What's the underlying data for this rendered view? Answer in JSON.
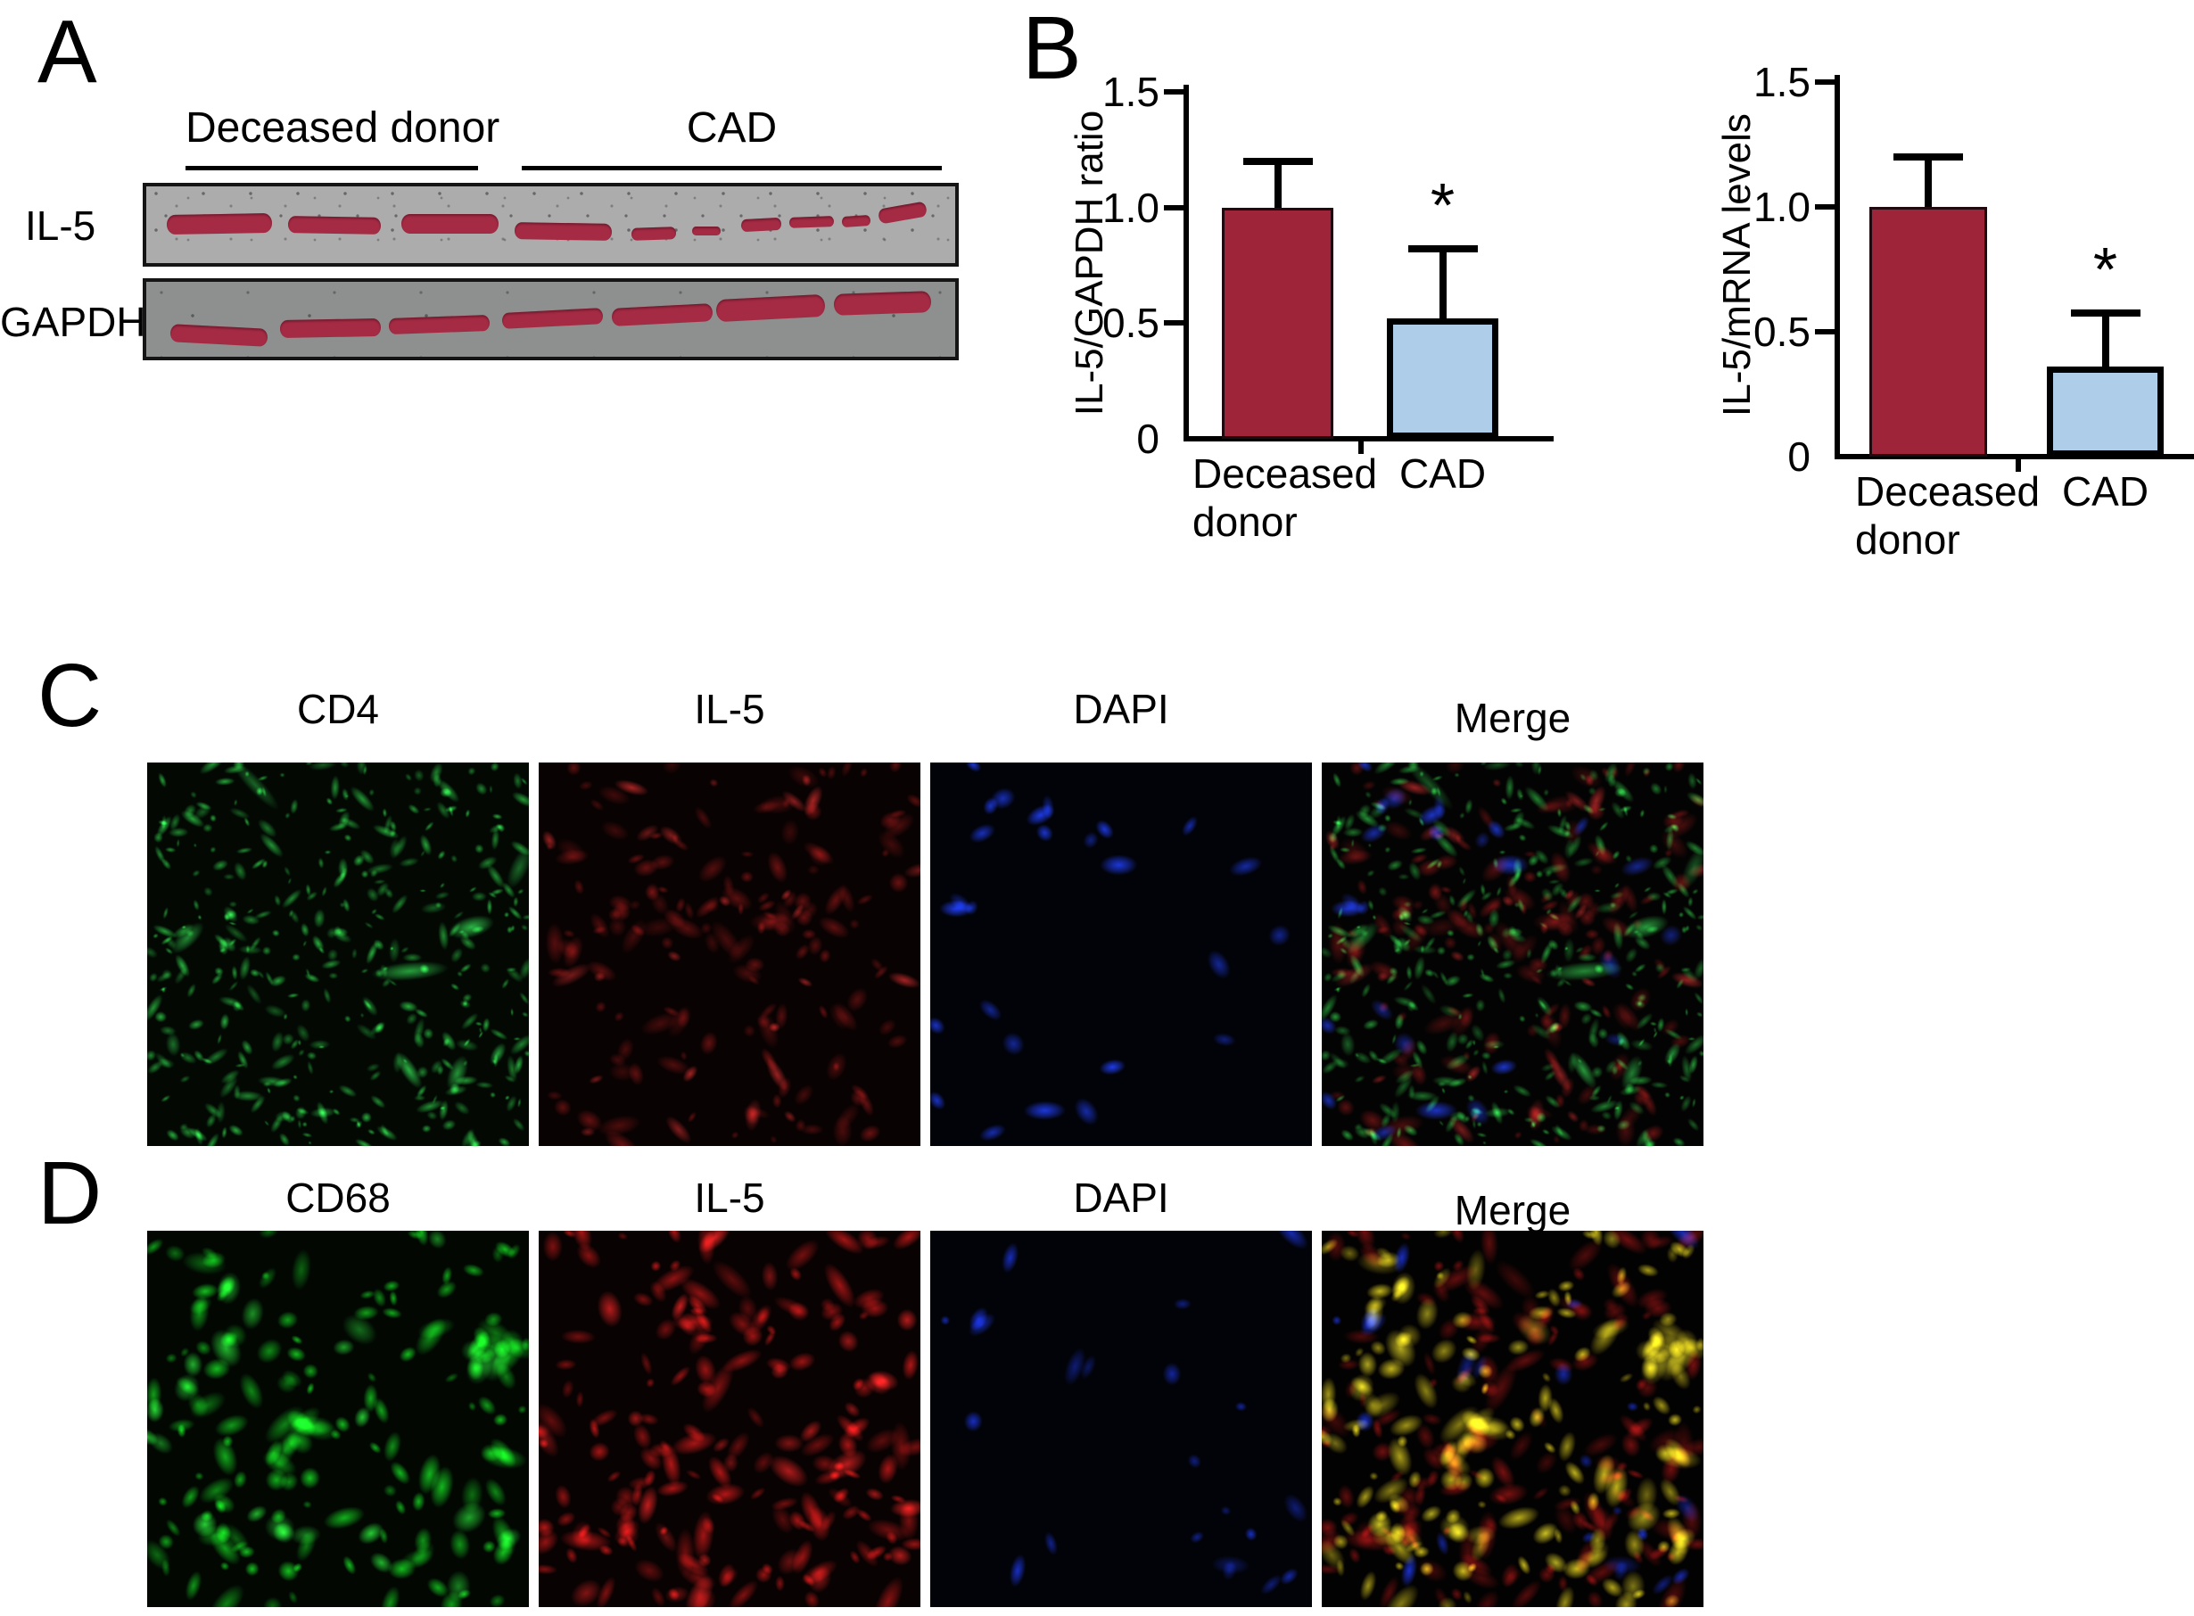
{
  "background": "#ffffff",
  "panels": {
    "A": {
      "letter": "A",
      "group_labels": [
        "Deceased donor",
        "CAD"
      ],
      "row_labels": [
        "IL-5",
        "GAPDH"
      ],
      "band_color": "#a52b44",
      "strips": [
        {
          "name": "IL-5 blot",
          "bg": "#acacac",
          "bands": [
            [
              2.5,
              36,
              13,
              26,
              -1
            ],
            [
              17.5,
              40,
              11.5,
              22,
              1
            ],
            [
              31.5,
              36,
              12,
              26,
              0
            ],
            [
              45.5,
              48,
              12,
              22,
              1
            ],
            [
              60,
              54,
              5.5,
              16,
              -2
            ],
            [
              67.5,
              52,
              3.5,
              12,
              0
            ],
            [
              73.5,
              42,
              5,
              16,
              -3
            ],
            [
              79.5,
              40,
              5.5,
              14,
              -2
            ],
            [
              86,
              38,
              3.5,
              14,
              -4
            ],
            [
              90.5,
              24,
              6,
              20,
              -10
            ]
          ]
        },
        {
          "name": "GAPDH blot",
          "bg": "#8e8f8f",
          "bands": [
            [
              3,
              60,
              12,
              24,
              3
            ],
            [
              16.5,
              50,
              12.5,
              24,
              -1
            ],
            [
              30,
              46,
              12.5,
              22,
              -2
            ],
            [
              44,
              38,
              12.5,
              22,
              -3
            ],
            [
              57.5,
              32,
              12.5,
              24,
              -3
            ],
            [
              70.5,
              20,
              13.5,
              30,
              -3
            ],
            [
              85,
              14,
              12,
              28,
              -2
            ]
          ]
        }
      ]
    },
    "B": {
      "letter": "B"
    },
    "C": {
      "letter": "C",
      "images": [
        {
          "label": "CD4",
          "bg": "#030803",
          "channels": [
            {
              "color": "#2fd44a",
              "seed": 101,
              "count": 400,
              "rmin": 1.5,
              "rmax": 6.5,
              "elong": 3,
              "alpha": 0.8
            },
            {
              "color": "#35e055",
              "seed": 102,
              "count": 10,
              "rmin": 5,
              "rmax": 12,
              "elong": 4.5,
              "alpha": 0.8
            }
          ]
        },
        {
          "label": "IL-5",
          "bg": "#090202",
          "channels": [
            {
              "color": "#c61f1f",
              "seed": 201,
              "count": 150,
              "rmin": 3.5,
              "rmax": 11,
              "elong": 2.4,
              "alpha": 0.5
            },
            {
              "color": "#e03030",
              "seed": 202,
              "count": 25,
              "rmin": 4,
              "rmax": 9,
              "elong": 2.8,
              "alpha": 0.75
            }
          ]
        },
        {
          "label": "DAPI",
          "bg": "#020309",
          "channels": [
            {
              "color": "#2040ff",
              "seed": 301,
              "count": 26,
              "rmin": 6,
              "rmax": 13,
              "elong": 2.3,
              "alpha": 0.9
            }
          ]
        },
        {
          "label": "Merge",
          "bg": "#040303",
          "channels": [
            {
              "color": "#c61f1f",
              "seed": 201,
              "count": 150,
              "rmin": 3.5,
              "rmax": 11,
              "elong": 2.4,
              "alpha": 0.5
            },
            {
              "color": "#e03030",
              "seed": 202,
              "count": 25,
              "rmin": 4,
              "rmax": 9,
              "elong": 2.8,
              "alpha": 0.7
            },
            {
              "color": "#2fd44a",
              "seed": 101,
              "count": 400,
              "rmin": 1.5,
              "rmax": 6.5,
              "elong": 3,
              "alpha": 0.7
            },
            {
              "color": "#35e055",
              "seed": 102,
              "count": 10,
              "rmin": 5,
              "rmax": 12,
              "elong": 4.5,
              "alpha": 0.7
            },
            {
              "color": "#2040ff",
              "seed": 301,
              "count": 26,
              "rmin": 6,
              "rmax": 13,
              "elong": 2.3,
              "alpha": 0.8
            }
          ]
        }
      ]
    },
    "D": {
      "letter": "D",
      "images": [
        {
          "label": "CD68",
          "bg": "#020702",
          "channels": [
            {
              "color": "#16dc22",
              "seed": 401,
              "count": 150,
              "rmin": 4,
              "rmax": 13,
              "elong": 2.2,
              "alpha": 0.85
            },
            {
              "color": "#2bee3c",
              "seed": 402,
              "count": 25,
              "rmin": 8,
              "rmax": 16,
              "elong": 1.6,
              "alpha": 0.9
            }
          ]
        },
        {
          "label": "IL-5",
          "bg": "#080202",
          "channels": [
            {
              "color": "#d81a1a",
              "seed": 501,
              "count": 160,
              "rmin": 4,
              "rmax": 12,
              "elong": 2.6,
              "alpha": 0.8
            },
            {
              "color": "#e62222",
              "seed": 502,
              "count": 30,
              "rmin": 6,
              "rmax": 14,
              "elong": 2.2,
              "alpha": 0.9
            }
          ]
        },
        {
          "label": "DAPI",
          "bg": "#020308",
          "channels": [
            {
              "color": "#1c38f0",
              "seed": 601,
              "count": 22,
              "rmin": 5,
              "rmax": 11,
              "elong": 2.4,
              "alpha": 0.8
            }
          ]
        },
        {
          "label": "Merge",
          "bg": "#030202",
          "channels": [
            {
              "color": "#d81a1a",
              "seed": 501,
              "count": 160,
              "rmin": 4,
              "rmax": 12,
              "elong": 2.6,
              "alpha": 0.55
            },
            {
              "color": "#e8d820",
              "seed": 401,
              "count": 150,
              "rmin": 4,
              "rmax": 13,
              "elong": 2.2,
              "alpha": 0.85
            },
            {
              "color": "#f0e428",
              "seed": 402,
              "count": 25,
              "rmin": 8,
              "rmax": 16,
              "elong": 1.6,
              "alpha": 0.9
            },
            {
              "color": "#1c38f0",
              "seed": 601,
              "count": 22,
              "rmin": 5,
              "rmax": 11,
              "elong": 2.4,
              "alpha": 0.85
            }
          ]
        }
      ]
    }
  },
  "chart_data": [
    {
      "type": "bar",
      "title": "",
      "categories": [
        "Deceased donor",
        "CAD"
      ],
      "values": [
        1.0,
        0.52
      ],
      "error_up": [
        0.2,
        0.3
      ],
      "ylabel": "IL-5/GAPDH ratio",
      "xlabel": "",
      "ylim": [
        0,
        1.5
      ],
      "yticks": [
        0,
        0.5,
        1.0,
        1.5
      ],
      "ytick_labels": [
        "0",
        "0.5",
        "1.0",
        "1.5"
      ],
      "bar_colors": [
        "#9e2439",
        "#aecde9"
      ],
      "significance": [
        {
          "index": 1,
          "marker": "*"
        }
      ],
      "grid": false,
      "legend": null
    },
    {
      "type": "bar",
      "title": "",
      "categories": [
        "Deceased donor",
        "CAD"
      ],
      "values": [
        1.0,
        0.36
      ],
      "error_up": [
        0.2,
        0.215
      ],
      "ylabel": "IL-5/mRNA levels",
      "xlabel": "",
      "ylim": [
        0,
        1.5
      ],
      "yticks": [
        0,
        0.5,
        1.0,
        1.5
      ],
      "ytick_labels": [
        "0",
        "0.5",
        "1.0",
        "1.5"
      ],
      "bar_colors": [
        "#9e2439",
        "#aecde9"
      ],
      "significance": [
        {
          "index": 1,
          "marker": "*"
        }
      ],
      "grid": false,
      "legend": null
    }
  ]
}
